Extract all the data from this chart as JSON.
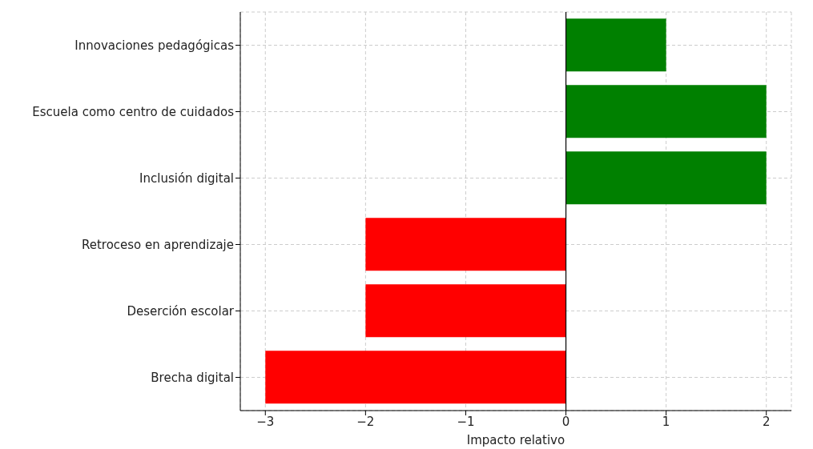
{
  "chart_data": {
    "type": "bar",
    "orientation": "horizontal",
    "xlabel": "Impacto relativo",
    "categories": [
      "Innovaciones pedagógicas",
      "Escuela como centro de cuidados",
      "Inclusión digital",
      "Retroceso en aprendizaje",
      "Deserción escolar",
      "Brecha digital"
    ],
    "values": [
      1,
      2,
      2,
      -2,
      -2,
      -3
    ],
    "colors": [
      "#008000",
      "#008000",
      "#008000",
      "#ff0000",
      "#ff0000",
      "#ff0000"
    ],
    "xlim": [
      -3.25,
      2.25
    ],
    "xticks": [
      {
        "value": -3,
        "label": "−3"
      },
      {
        "value": -2,
        "label": "−2"
      },
      {
        "value": -1,
        "label": "−1"
      },
      0,
      1,
      2
    ],
    "ref_lines": [
      {
        "axis": "x",
        "value": 0,
        "color": "#000000"
      }
    ],
    "grid": true
  }
}
